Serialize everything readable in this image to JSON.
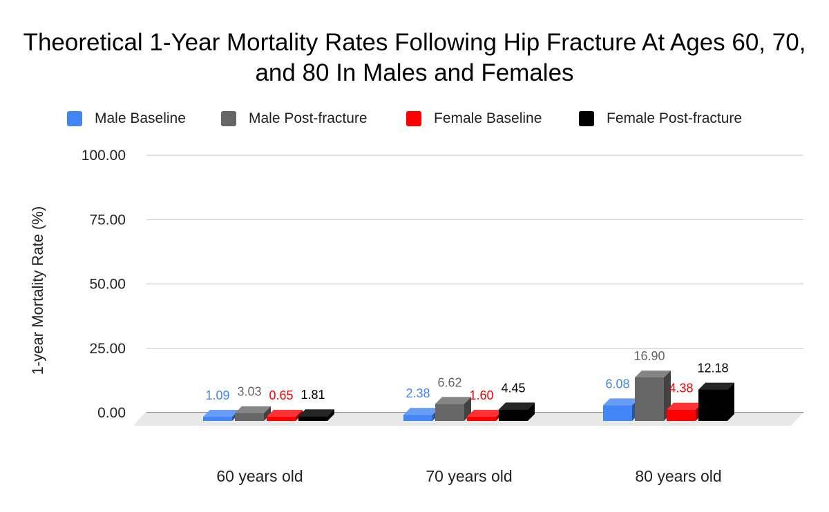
{
  "chart_data": {
    "type": "bar",
    "title": "Theoretical 1-Year Mortality Rates Following Hip Fracture At Ages 60, 70, and 80 In Males and Females",
    "xlabel": "",
    "ylabel": "1-year Mortality Rate (%)",
    "ylim": [
      0,
      100
    ],
    "yticks": [
      "0.00",
      "25.00",
      "50.00",
      "75.00",
      "100.00"
    ],
    "categories": [
      "60 years old",
      "70 years old",
      "80 years old"
    ],
    "series": [
      {
        "name": "Male Baseline",
        "color": "#4285f4",
        "values": [
          1.09,
          2.38,
          6.08
        ],
        "labels": [
          "1.09",
          "2.38",
          "6.08"
        ]
      },
      {
        "name": "Male Post-fracture",
        "color": "#666666",
        "values": [
          3.03,
          6.62,
          16.9
        ],
        "labels": [
          "3.03",
          "6.62",
          "16.90"
        ]
      },
      {
        "name": "Female Baseline",
        "color": "#ff0000",
        "values": [
          0.65,
          1.6,
          4.38
        ],
        "labels": [
          "0.65",
          "1.60",
          "4.38"
        ]
      },
      {
        "name": "Female Post-fracture",
        "color": "#000000",
        "values": [
          1.81,
          4.45,
          12.18
        ],
        "labels": [
          "1.81",
          "4.45",
          "12.18"
        ]
      }
    ],
    "label_colors": [
      "#4285f4",
      "#666666",
      "#ff0000",
      "#000000"
    ],
    "grid": true,
    "legend_position": "top",
    "style": "3d-bar"
  }
}
